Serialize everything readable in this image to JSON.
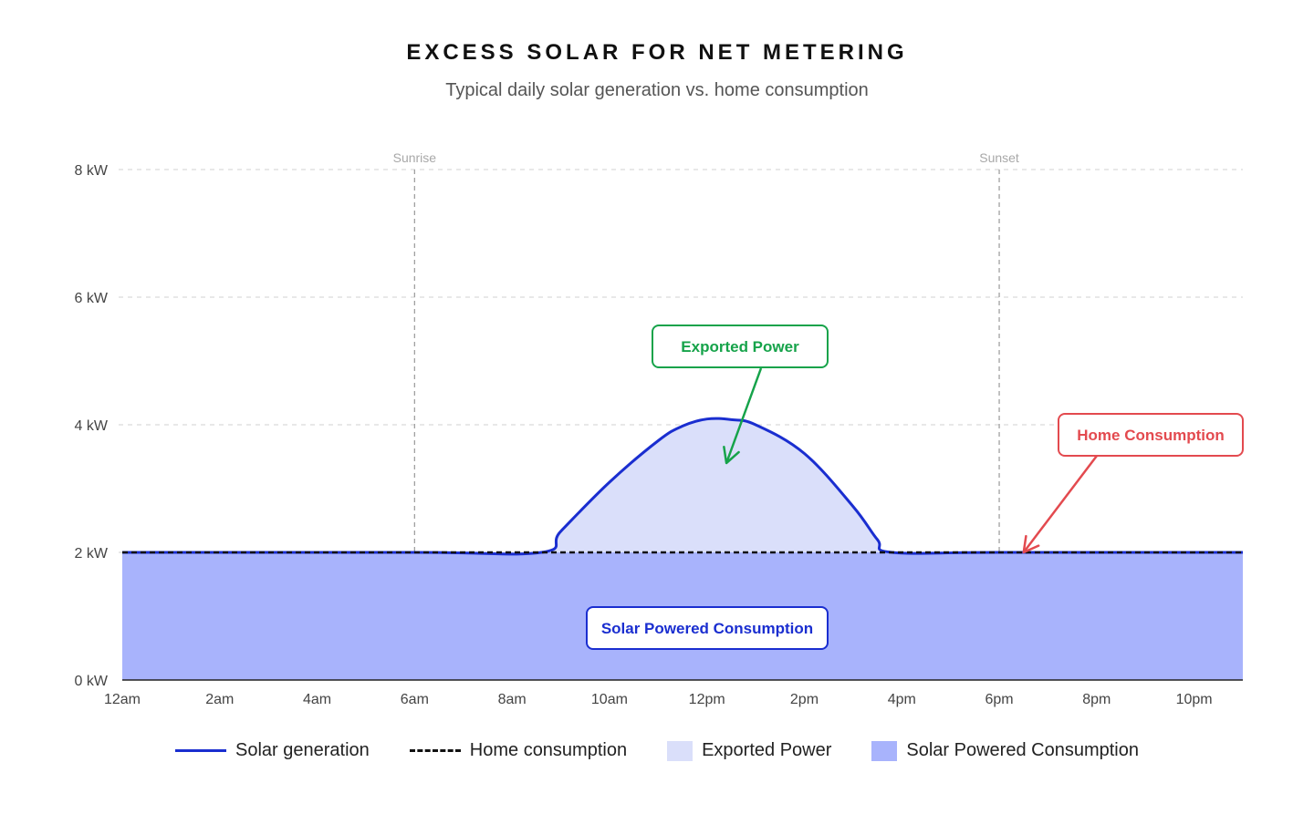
{
  "chart_data": {
    "type": "area",
    "title": "EXCESS SOLAR FOR NET METERING",
    "subtitle": "Typical daily solar generation vs. home consumption",
    "xlabel": "",
    "ylabel": "",
    "x_unit": "hour of day",
    "x_tick_labels": [
      "12am",
      "2am",
      "4am",
      "6am",
      "8am",
      "10am",
      "12pm",
      "2pm",
      "4pm",
      "6pm",
      "8pm",
      "10pm"
    ],
    "x_tick_values": [
      0,
      2,
      4,
      6,
      8,
      10,
      12,
      14,
      16,
      18,
      20,
      22
    ],
    "xlim": [
      0,
      23
    ],
    "ylim": [
      0,
      8
    ],
    "y_ticks": [
      0,
      2,
      4,
      6,
      8
    ],
    "y_unit": "kW",
    "grid": "dashed horizontal",
    "series": [
      {
        "name": "Solar generation",
        "style": "solid line",
        "color": "#1a2ed0",
        "x": [
          0,
          6,
          8.6,
          9,
          10,
          11,
          11.5,
          12,
          12.5,
          13,
          14,
          15,
          15.5,
          15.8,
          18,
          23
        ],
        "values": [
          2,
          2,
          2,
          2.33,
          3.1,
          3.75,
          3.98,
          4.09,
          4.08,
          4.0,
          3.55,
          2.72,
          2.2,
          2.0,
          2.0,
          2.0
        ]
      },
      {
        "name": "Home consumption",
        "style": "dashed line",
        "color": "#111111",
        "x": [
          0,
          23
        ],
        "values": [
          2,
          2
        ]
      }
    ],
    "areas": [
      {
        "name": "Exported Power",
        "color": "#dadffa",
        "description_of": "Solar generation above Home consumption"
      },
      {
        "name": "Solar Powered Consumption",
        "color": "#a8b3fc",
        "description_of": "area from 0 to Home consumption"
      }
    ],
    "vertical_markers": [
      {
        "label": "Sunrise",
        "x": 6
      },
      {
        "label": "Sunset",
        "x": 18
      }
    ],
    "annotations": [
      {
        "text": "Exported Power",
        "color": "#16a34a",
        "arrow_to": {
          "x": 12.4,
          "y": 3.4
        }
      },
      {
        "text": "Home Consumption",
        "color": "#e34a4f",
        "arrow_to": {
          "x": 18.5,
          "y": 2.0
        }
      },
      {
        "text": "Solar Powered Consumption",
        "color": "#1a2ed0"
      }
    ],
    "legend": {
      "placement": "bottom",
      "items": [
        {
          "label": "Solar generation",
          "kind": "line",
          "color": "#1a2ed0"
        },
        {
          "label": "Home consumption",
          "kind": "dashed",
          "color": "#111111"
        },
        {
          "label": "Exported Power",
          "kind": "box",
          "color": "#dadffa"
        },
        {
          "label": "Solar Powered Consumption",
          "kind": "box",
          "color": "#a8b3fc"
        }
      ]
    }
  }
}
